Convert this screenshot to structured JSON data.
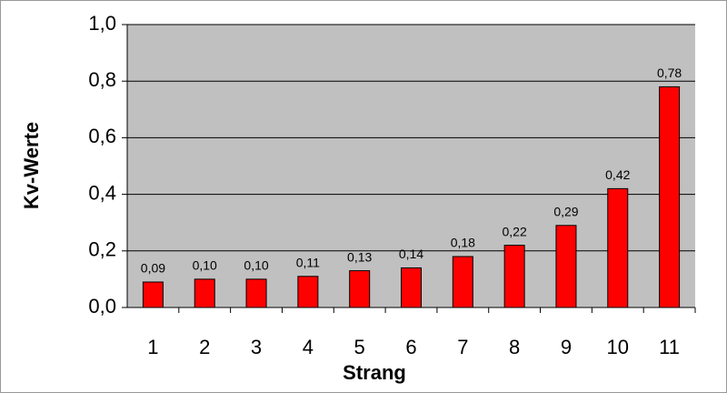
{
  "chart_data": {
    "type": "bar",
    "x_label": "Strang",
    "y_label": "Kv-Werte",
    "categories": [
      "1",
      "2",
      "3",
      "4",
      "5",
      "6",
      "7",
      "8",
      "9",
      "10",
      "11"
    ],
    "values": [
      0.09,
      0.1,
      0.1,
      0.11,
      0.13,
      0.14,
      0.18,
      0.22,
      0.29,
      0.42,
      0.78
    ],
    "value_labels": [
      "0,09",
      "0,10",
      "0,10",
      "0,11",
      "0,13",
      "0,14",
      "0,18",
      "0,22",
      "0,29",
      "0,42",
      "0,78"
    ],
    "color": "#ff0000",
    "ylim": [
      0,
      1
    ],
    "yticks": [
      {
        "value": 0,
        "label": "0,0"
      },
      {
        "value": 0.2,
        "label": "0,2"
      },
      {
        "value": 0.4,
        "label": "0,4"
      },
      {
        "value": 0.6,
        "label": "0,6"
      },
      {
        "value": 0.8,
        "label": "0,8"
      },
      {
        "value": 1,
        "label": "1,0"
      }
    ],
    "grid": true
  }
}
